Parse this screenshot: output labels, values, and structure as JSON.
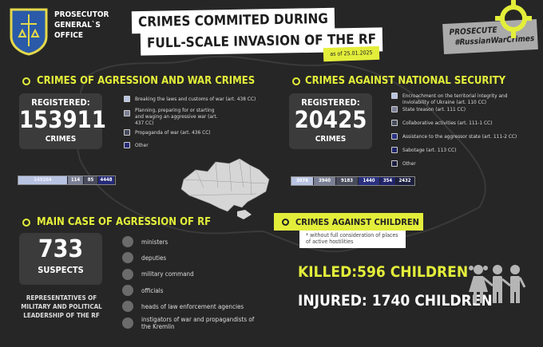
{
  "header": {
    "org_name": [
      "PROSECUTOR",
      "GENERAL`S",
      "OFFICE"
    ],
    "title_line1": "CRIMES COMMITED DURING",
    "title_line2": "FULL-SCALE INVASION OF THE RF",
    "date": "as of 25.01.2025",
    "badge_line1": "PROSECUTE",
    "badge_line2": "#RussianWarCrimes"
  },
  "colors": {
    "background": "#262626",
    "accent": "#e3ee3a"
  },
  "war_crimes": {
    "title": "CRIMES OF AGRESSION AND WAR CRIMES",
    "registered_label": "REGISTERED:",
    "count": "153911",
    "unit": "CRIMES",
    "legend": [
      {
        "label": "Breaking the laws and customs of war (art. 438 CC)",
        "color": "#b8c4e2"
      },
      {
        "label": "Planning, preparing for or starting and waging an aggressive war (art. 437 CC)",
        "color": "#7b8096"
      },
      {
        "label": "Propaganda of war (art. 436 CC)",
        "color": "#474b5c"
      },
      {
        "label": "Other",
        "color": "#252a78"
      }
    ],
    "bar": [
      {
        "value": "149264",
        "color": "#b8c4e2"
      },
      {
        "value": "114",
        "color": "#7b8096"
      },
      {
        "value": "85",
        "color": "#474b5c"
      },
      {
        "value": "4448",
        "color": "#252a78"
      }
    ]
  },
  "national_security": {
    "title": "CRIMES AGAINST NATIONAL SECURITY",
    "registered_label": "REGISTERED:",
    "count": "20425",
    "unit": "CRIMES",
    "legend": [
      {
        "label": "Encroachment on the territorial integrity and inviolability of Ukraine (art. 110 CC)",
        "color": "#b8c4e2"
      },
      {
        "label": "State treason (art. 111 CC)",
        "color": "#7b8096"
      },
      {
        "label": "Collaborative activities (art. 111-1 CC)",
        "color": "#474b5c"
      },
      {
        "label": "Assistance to the aggressor state (art. 111-2 CC)",
        "color": "#2a3080"
      },
      {
        "label": "Sabotage (art. 113 CC)",
        "color": "#20246a"
      },
      {
        "label": "Other",
        "color": "#1c1f40"
      }
    ],
    "bar": [
      {
        "value": "3076",
        "color": "#b8c4e2"
      },
      {
        "value": "3940",
        "color": "#7b8096"
      },
      {
        "value": "9183",
        "color": "#474b5c"
      },
      {
        "value": "1440",
        "color": "#2a3080"
      },
      {
        "value": "354",
        "color": "#20246a"
      },
      {
        "value": "2432",
        "color": "#1c1f40"
      }
    ]
  },
  "main_case": {
    "title": "MAIN CASE OF AGRESSION OF RF",
    "count": "733",
    "unit": "SUSPECTS",
    "caption": "REPRESENTATIVES OF MILITARY AND POLITICAL LEADERSHIP OF THE RF",
    "items": [
      "ministers",
      "deputies",
      "military command",
      "officials",
      "heads of law enforcement agencies",
      "instigators of war and propagandists of the Kremlin"
    ]
  },
  "children": {
    "title": "CRIMES AGAINST CHILDREN",
    "note": "* without full consideration of places of active hostilities",
    "killed": "KILLED:596 CHILDREN",
    "injured": "INJURED: 1740 CHILDREN"
  }
}
